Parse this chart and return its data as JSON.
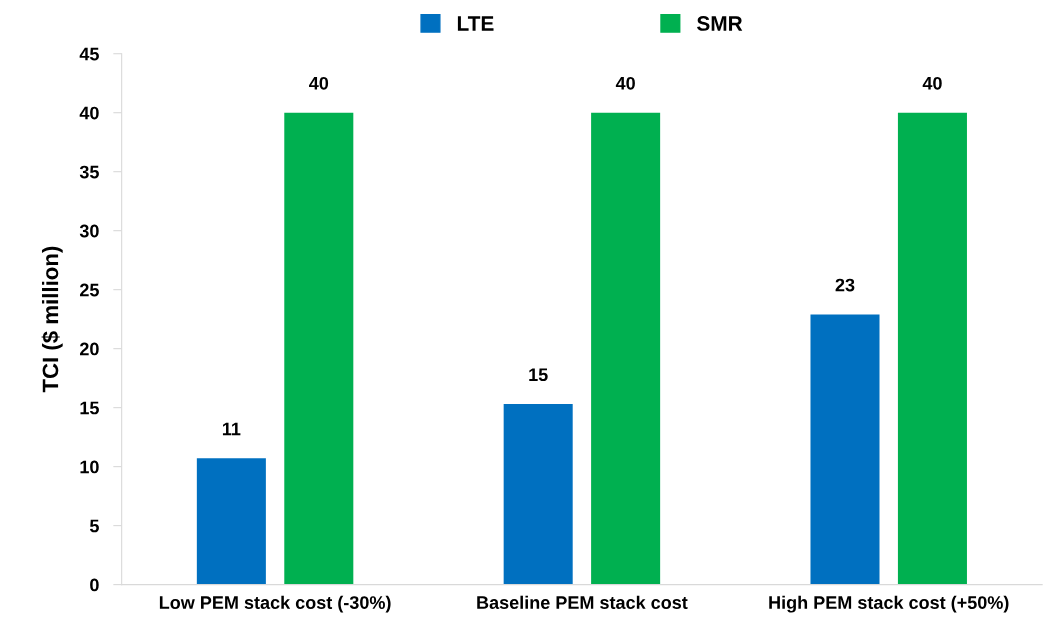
{
  "chart_data": {
    "type": "bar",
    "ylabel": "TCI ($ million)",
    "categories": [
      "Low PEM stack cost (-30%)",
      "Baseline PEM stack cost",
      "High PEM stack cost (+50%)"
    ],
    "series": [
      {
        "name": "LTE",
        "color": "#0070c0",
        "values": [
          10.7,
          15.3,
          22.9
        ],
        "value_labels": [
          "11",
          "15",
          "23"
        ]
      },
      {
        "name": "SMR",
        "color": "#00b050",
        "values": [
          40,
          40,
          40
        ],
        "value_labels": [
          "40",
          "40",
          "40"
        ]
      }
    ],
    "ylim": [
      0,
      45
    ],
    "yticks": [
      0,
      5,
      10,
      15,
      20,
      25,
      30,
      35,
      40,
      45
    ],
    "grid": false,
    "legend": "top"
  }
}
